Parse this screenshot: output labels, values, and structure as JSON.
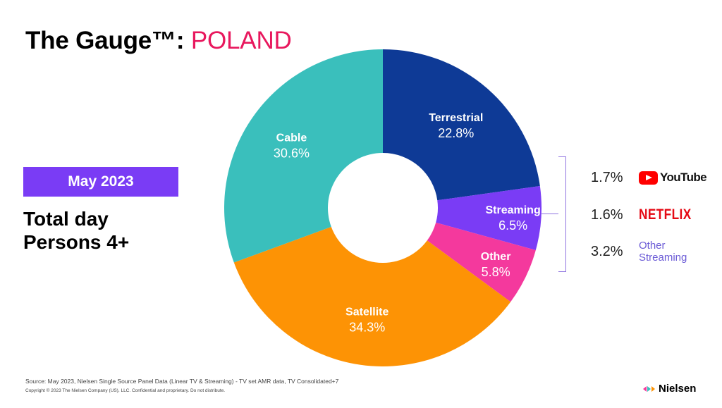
{
  "header": {
    "title_prefix": "The Gauge™:",
    "title_country": "POLAND"
  },
  "badge": {
    "label": "May 2023"
  },
  "subtitle": {
    "line1": "Total day",
    "line2": "Persons 4+"
  },
  "chart_data": {
    "type": "pie",
    "donut": true,
    "slices": [
      {
        "label": "Terrestrial",
        "value": 22.8,
        "display": "22.8%",
        "color": "#0e3a96"
      },
      {
        "label": "Streaming",
        "value": 6.5,
        "display": "6.5%",
        "color": "#7a3cf5"
      },
      {
        "label": "Other",
        "value": 5.8,
        "display": "5.8%",
        "color": "#f4399d"
      },
      {
        "label": "Satellite",
        "value": 34.3,
        "display": "34.3%",
        "color": "#fd9305"
      },
      {
        "label": "Cable",
        "value": 30.6,
        "display": "30.6%",
        "color": "#3abfbc"
      }
    ],
    "start_direction": "12 o'clock",
    "order": "clockwise"
  },
  "streaming_breakdown": [
    {
      "pct": "1.7%",
      "name": "YouTube",
      "icon": "youtube-logo"
    },
    {
      "pct": "1.6%",
      "name": "NETFLIX",
      "icon": "netflix-logo"
    },
    {
      "pct": "3.2%",
      "name_line1": "Other",
      "name_line2": "Streaming"
    }
  ],
  "footer": {
    "source": "Source: May 2023, Nielsen Single Source Panel Data (Linear TV & Streaming) - TV set AMR data, TV Consolidated+7",
    "copyright": "Copyright © 2023 The Nielsen Company (US), LLC. Confidential and proprietary. Do not distribute.",
    "brand": "Nielsen"
  }
}
